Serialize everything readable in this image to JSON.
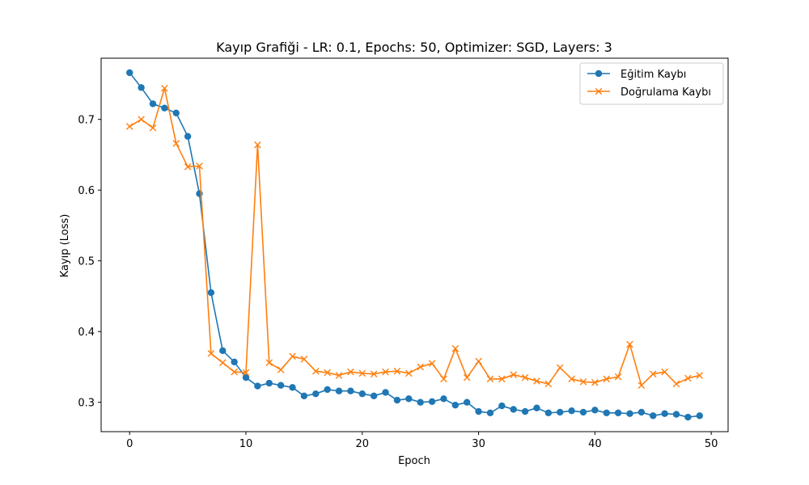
{
  "chart_data": {
    "type": "line",
    "title": "Kayıp Grafiği - LR: 0.1, Epochs: 50, Optimizer: SGD, Layers: 3",
    "xlabel": "Epoch",
    "ylabel": "Kayıp (Loss)",
    "xlim": [
      -2.45,
      51.45
    ],
    "ylim": [
      0.2585,
      0.7865
    ],
    "xticks": [
      0,
      10,
      20,
      30,
      40,
      50
    ],
    "yticks": [
      0.3,
      0.4,
      0.5,
      0.6,
      0.7
    ],
    "ytick_labels": [
      "0.3",
      "0.4",
      "0.5",
      "0.6",
      "0.7"
    ],
    "grid": false,
    "legend_position": "top-right",
    "x": [
      0,
      1,
      2,
      3,
      4,
      5,
      6,
      7,
      8,
      9,
      10,
      11,
      12,
      13,
      14,
      15,
      16,
      17,
      18,
      19,
      20,
      21,
      22,
      23,
      24,
      25,
      26,
      27,
      28,
      29,
      30,
      31,
      32,
      33,
      34,
      35,
      36,
      37,
      38,
      39,
      40,
      41,
      42,
      43,
      44,
      45,
      46,
      47,
      48,
      49
    ],
    "series": [
      {
        "name": "Eğitim Kaybı",
        "color": "#1f77b4",
        "marker": "circle",
        "values": [
          0.766,
          0.745,
          0.722,
          0.716,
          0.709,
          0.676,
          0.595,
          0.455,
          0.373,
          0.357,
          0.335,
          0.323,
          0.327,
          0.324,
          0.321,
          0.309,
          0.312,
          0.318,
          0.316,
          0.316,
          0.312,
          0.309,
          0.314,
          0.303,
          0.305,
          0.3,
          0.301,
          0.305,
          0.296,
          0.3,
          0.287,
          0.285,
          0.295,
          0.29,
          0.287,
          0.292,
          0.285,
          0.286,
          0.288,
          0.286,
          0.289,
          0.285,
          0.285,
          0.284,
          0.286,
          0.281,
          0.284,
          0.283,
          0.279,
          0.281
        ]
      },
      {
        "name": "Doğrulama Kaybı",
        "color": "#ff7f0e",
        "marker": "x",
        "values": [
          0.69,
          0.7,
          0.688,
          0.744,
          0.666,
          0.633,
          0.634,
          0.369,
          0.356,
          0.343,
          0.342,
          0.664,
          0.356,
          0.346,
          0.365,
          0.361,
          0.344,
          0.342,
          0.338,
          0.343,
          0.341,
          0.34,
          0.343,
          0.344,
          0.341,
          0.35,
          0.355,
          0.333,
          0.376,
          0.335,
          0.358,
          0.333,
          0.333,
          0.339,
          0.335,
          0.33,
          0.326,
          0.349,
          0.333,
          0.329,
          0.328,
          0.333,
          0.336,
          0.382,
          0.324,
          0.34,
          0.343,
          0.326,
          0.334,
          0.338
        ]
      }
    ]
  }
}
